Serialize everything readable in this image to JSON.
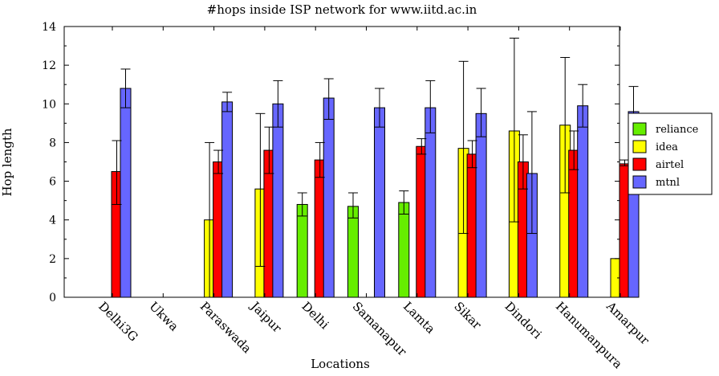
{
  "chart_data": {
    "type": "bar",
    "title": "#hops inside ISP network for www.iitd.ac.in",
    "xlabel": "Locations",
    "ylabel": "Hop length",
    "ylim": [
      0,
      14
    ],
    "yticks": [
      0,
      2,
      4,
      6,
      8,
      10,
      12,
      14
    ],
    "grid": false,
    "legend_position": "right",
    "categories": [
      "Delhi3G",
      "Ukwa",
      "Paraswada",
      "Jaipur",
      "Delhi",
      "Samanapur",
      "Lamta",
      "Sikar",
      "Dindori",
      "Hanumanpura",
      "Amarpur"
    ],
    "series": [
      {
        "name": "reliance",
        "color": "#66ee00",
        "values": [
          null,
          null,
          null,
          null,
          4.8,
          4.7,
          4.9,
          null,
          null,
          null,
          null
        ],
        "error_low": [
          null,
          null,
          null,
          null,
          4.2,
          4.1,
          4.3,
          null,
          null,
          null,
          null
        ],
        "error_high": [
          null,
          null,
          null,
          null,
          5.4,
          5.4,
          5.5,
          null,
          null,
          null,
          null
        ]
      },
      {
        "name": "idea",
        "color": "#ffff00",
        "values": [
          null,
          null,
          4.0,
          5.6,
          null,
          null,
          null,
          7.7,
          8.6,
          8.9,
          2.0
        ],
        "error_low": [
          null,
          null,
          0.0,
          1.6,
          null,
          null,
          null,
          3.3,
          3.9,
          5.4,
          2.0
        ],
        "error_high": [
          null,
          null,
          8.0,
          9.5,
          null,
          null,
          null,
          12.2,
          13.4,
          12.4,
          2.0
        ]
      },
      {
        "name": "airtel",
        "color": "#ff0000",
        "values": [
          6.5,
          null,
          7.0,
          7.6,
          7.1,
          null,
          7.8,
          7.4,
          7.0,
          7.6,
          6.9
        ],
        "error_low": [
          4.8,
          null,
          6.4,
          6.4,
          6.2,
          null,
          7.4,
          6.7,
          5.6,
          6.6,
          6.8
        ],
        "error_high": [
          8.1,
          null,
          7.6,
          8.8,
          8.0,
          null,
          8.2,
          8.1,
          8.4,
          8.6,
          7.1
        ]
      },
      {
        "name": "mtnl",
        "color": "#6666ff",
        "values": [
          10.8,
          null,
          10.1,
          10.0,
          10.3,
          9.8,
          9.8,
          9.5,
          6.4,
          9.9,
          9.6
        ],
        "error_low": [
          9.8,
          null,
          9.6,
          8.8,
          9.2,
          8.8,
          8.5,
          8.3,
          3.3,
          8.8,
          8.4
        ],
        "error_high": [
          11.8,
          null,
          10.6,
          11.2,
          11.3,
          10.8,
          11.2,
          10.8,
          9.6,
          11.0,
          10.9
        ]
      }
    ]
  }
}
